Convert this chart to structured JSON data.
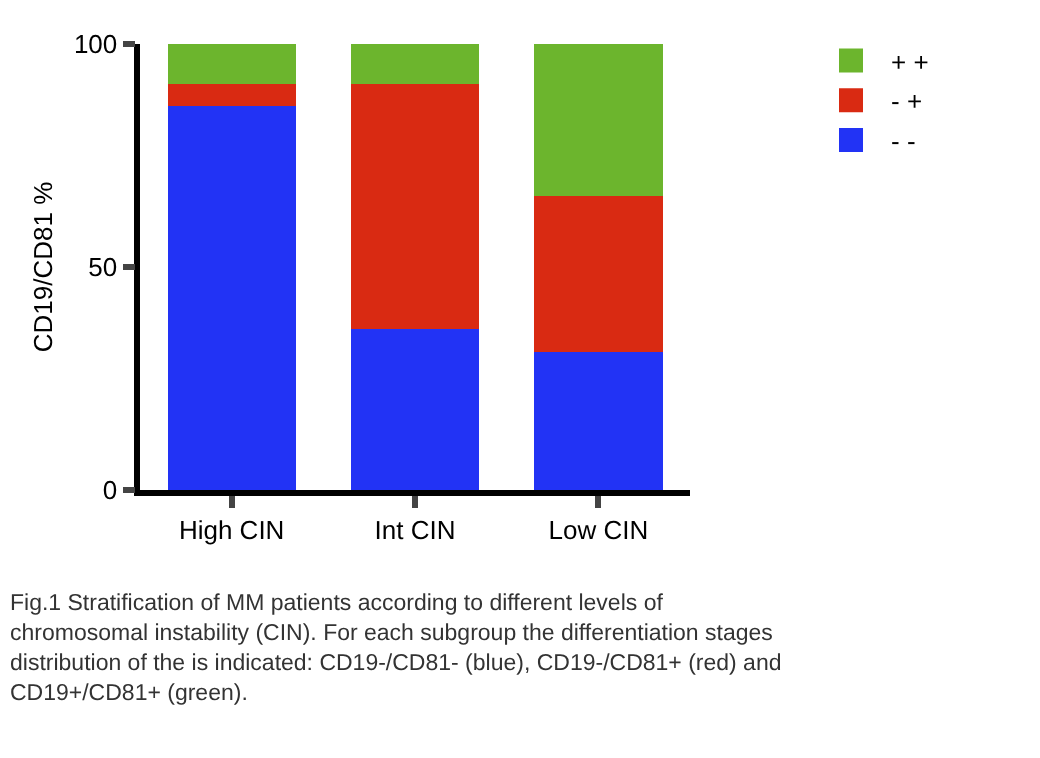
{
  "chart_data": {
    "type": "bar",
    "stacked": true,
    "ylabel": "CD19/CD81 %",
    "categories": [
      "High CIN",
      "Int CIN",
      "Low CIN"
    ],
    "series": [
      {
        "name": "- -",
        "color": "#2233f5",
        "values": [
          86,
          36,
          31
        ]
      },
      {
        "name": "- +",
        "color": "#d92a12",
        "values": [
          5,
          55,
          35
        ]
      },
      {
        "name": "+ +",
        "color": "#6cb52d",
        "values": [
          9,
          9,
          34
        ]
      }
    ],
    "ylim": [
      0,
      100
    ],
    "yticks": [
      0,
      50,
      100
    ],
    "legend": "right",
    "annotations": [
      "Fig.1 Stratification of MM patients according to different levels of chromosomal instability (CIN). For each subgroup the differentiation stages distribution of the is indicated: CD19-/CD81- (blue), CD19-/CD81+ (red) and CD19+/CD81+ (green)."
    ]
  }
}
